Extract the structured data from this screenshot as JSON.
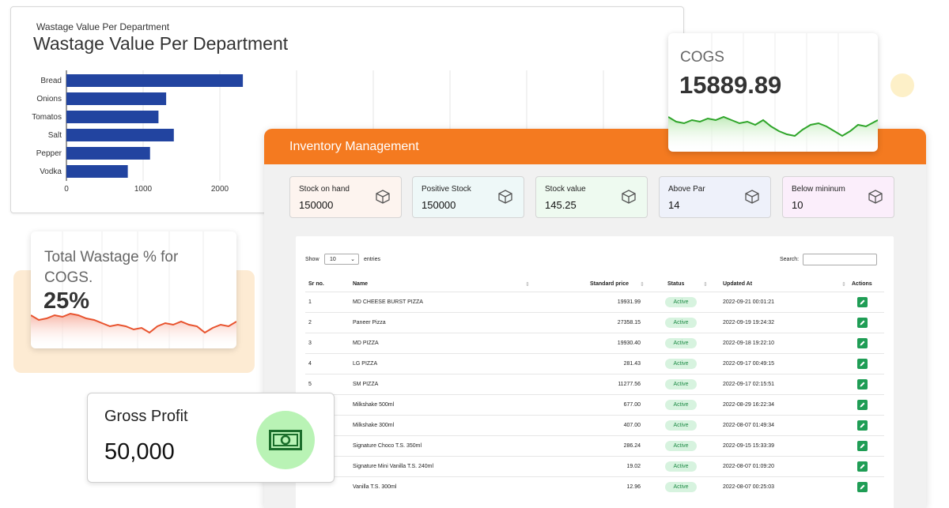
{
  "wastage_chart": {
    "small_title": "Wastage Value Per Department",
    "title": "Wastage Value Per Department",
    "chart_data": {
      "type": "bar",
      "orientation": "horizontal",
      "categories": [
        "Bread",
        "Onions",
        "Tomatos",
        "Salt",
        "Pepper",
        "Vodka"
      ],
      "values": [
        2300,
        1300,
        1200,
        1400,
        1090,
        800
      ],
      "xticks": [
        "0",
        "1000",
        "2000"
      ],
      "color": "#2244a0"
    }
  },
  "total_wastage": {
    "label": "Total Wastage % for COGS.",
    "value": "25%"
  },
  "gross_profit": {
    "label": "Gross Profit",
    "value": "50,000",
    "icon": "money-icon"
  },
  "cogs": {
    "label": "COGS",
    "value": "15889.89"
  },
  "inventory": {
    "title": "Inventory Management",
    "stats": [
      {
        "label": "Stock on hand",
        "value": "150000",
        "bg": "#fdf4ef",
        "icon": "boxes-icon"
      },
      {
        "label": "Positive Stock",
        "value": "150000",
        "bg": "#eef8f8",
        "icon": "stock-clock-icon"
      },
      {
        "label": "Stock value",
        "value": "145.25",
        "bg": "#eefaf0",
        "icon": "box-icon"
      },
      {
        "label": "Above Par",
        "value": "14",
        "bg": "#eef1fa",
        "icon": "box-icon"
      },
      {
        "label": "Below mininum",
        "value": "10",
        "bg": "#fbeefb",
        "icon": "box-icon"
      }
    ],
    "table": {
      "show_label": "Show",
      "entries_value": "10",
      "entries_label": "entries",
      "search_label": "Search:",
      "columns": [
        "Sr no.",
        "Name",
        "Standard price",
        "Status",
        "Updated At",
        "Actions"
      ],
      "rows": [
        {
          "sr": "1",
          "name": "MD CHEESE BURST PIZZA",
          "price": "19931.99",
          "status": "Active",
          "updated": "2022-09-21 00:01:21"
        },
        {
          "sr": "2",
          "name": "Paneer Pizza",
          "price": "27358.15",
          "status": "Active",
          "updated": "2022-09-19 19:24:32"
        },
        {
          "sr": "3",
          "name": "MD PIZZA",
          "price": "19930.40",
          "status": "Active",
          "updated": "2022-09-18 19:22:10"
        },
        {
          "sr": "4",
          "name": "LG PIZZA",
          "price": "281.43",
          "status": "Active",
          "updated": "2022-09-17 00:49:15"
        },
        {
          "sr": "5",
          "name": "SM PIZZA",
          "price": "11277.56",
          "status": "Active",
          "updated": "2022-09-17 02:15:51"
        },
        {
          "sr": "",
          "name": "Milkshake 500ml",
          "price": "677.00",
          "status": "Active",
          "updated": "2022-08-29 16:22:34"
        },
        {
          "sr": "",
          "name": "Milkshake 300ml",
          "price": "407.00",
          "status": "Active",
          "updated": "2022-08-07 01:49:34"
        },
        {
          "sr": "",
          "name": "Signature Choco T.S. 350ml",
          "price": "286.24",
          "status": "Active",
          "updated": "2022-09-15 15:33:39"
        },
        {
          "sr": "",
          "name": "Signature Mini Vanilla T.S. 240ml",
          "price": "19.02",
          "status": "Active",
          "updated": "2022-08-07 01:09:20"
        },
        {
          "sr": "",
          "name": "Vanilla T.S. 300ml",
          "price": "12.96",
          "status": "Active",
          "updated": "2022-08-07 00:25:03"
        }
      ]
    }
  }
}
